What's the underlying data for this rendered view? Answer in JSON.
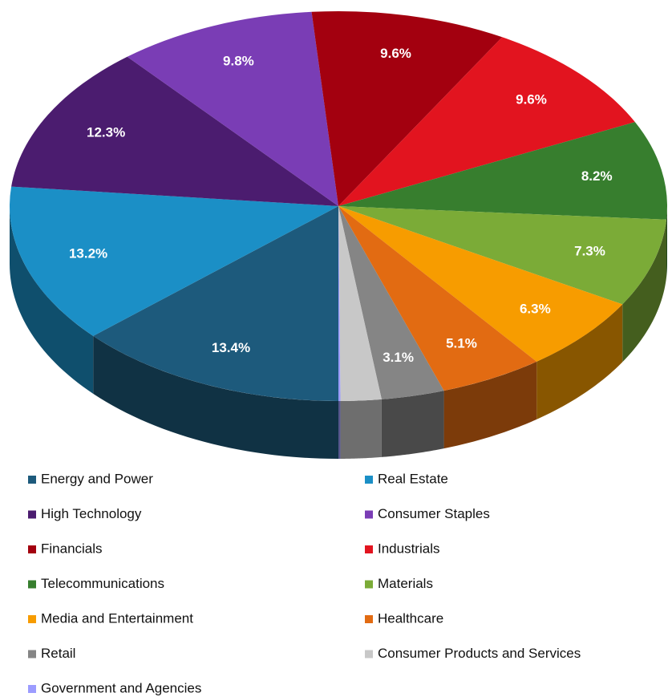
{
  "chart_data": {
    "type": "pie",
    "categories": [
      "Energy and Power",
      "Real Estate",
      "High Technology",
      "Consumer Staples",
      "Financials",
      "Industrials",
      "Telecommunications",
      "Materials",
      "Media and Entertainment",
      "Healthcare",
      "Retail",
      "Consumer Products and Services",
      "Government and Agencies"
    ],
    "values": [
      13.4,
      13.2,
      12.3,
      9.8,
      9.6,
      9.6,
      8.2,
      7.3,
      6.3,
      5.1,
      3.1,
      2.0,
      0.1
    ],
    "value_labels": [
      "13.4%",
      "13.2%",
      "12.3%",
      "9.8%",
      "9.6%",
      "9.6%",
      "8.2%",
      "7.3%",
      "6.3%",
      "5.1%",
      "3.1%",
      null,
      null
    ],
    "colors": [
      "#1d5a7c",
      "#1b8fc6",
      "#4b1c6f",
      "#7a3db5",
      "#a3000f",
      "#e2141f",
      "#377e2e",
      "#7bab37",
      "#f79c00",
      "#e26b12",
      "#858585",
      "#c8c8c8",
      "#9c9cff"
    ],
    "legend": "bottom"
  }
}
